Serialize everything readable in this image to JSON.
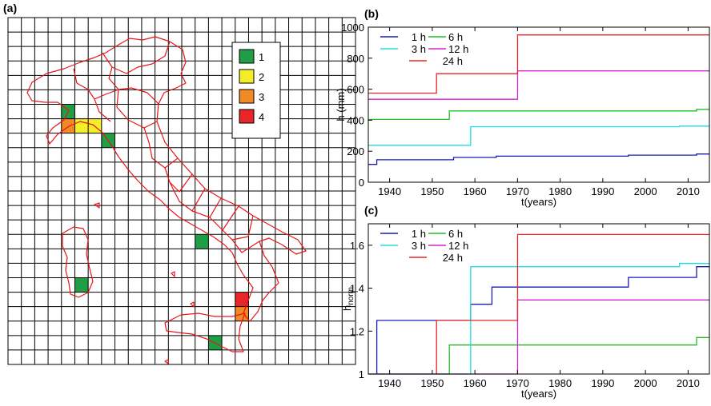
{
  "panels": {
    "a": "(a)",
    "b": "(b)",
    "c": "(c)"
  },
  "map": {
    "legend": [
      {
        "label": "1",
        "color": "#1f9e46"
      },
      {
        "label": "2",
        "color": "#f4ee2a"
      },
      {
        "label": "3",
        "color": "#f08a24"
      },
      {
        "label": "4",
        "color": "#e8262a"
      }
    ],
    "grid_cols": 26,
    "grid_rows": 24,
    "outline_color": "#e8141a",
    "cells": [
      {
        "col": 4,
        "row": 6,
        "class": 1
      },
      {
        "col": 5,
        "row": 7,
        "class": 2
      },
      {
        "col": 6,
        "row": 7,
        "class": 2
      },
      {
        "col": 4,
        "row": 7,
        "class": 3
      },
      {
        "col": 7,
        "row": 8,
        "class": 1
      },
      {
        "col": 14,
        "row": 15,
        "class": 1
      },
      {
        "col": 5,
        "row": 18,
        "class": 1
      },
      {
        "col": 17,
        "row": 19,
        "class": 4
      },
      {
        "col": 17,
        "row": 20,
        "class": 3
      },
      {
        "col": 15,
        "row": 22,
        "class": 1
      }
    ]
  },
  "chart_data": [
    {
      "panel": "b",
      "type": "line",
      "xlabel": "t(years)",
      "ylabel": "h (mm)",
      "xlim": [
        1935,
        2015
      ],
      "ylim": [
        0,
        1000
      ],
      "xticks": [
        "1940",
        "1950",
        "1960",
        "1970",
        "1980",
        "1990",
        "2000",
        "2010"
      ],
      "yticks": [
        "0",
        "200",
        "400",
        "600",
        "800",
        "1000"
      ],
      "legend_position": "top-left",
      "series": [
        {
          "name": "1 h",
          "color": "#1a1ab8",
          "x": [
            1935,
            1937,
            1937,
            1955,
            1955,
            1965,
            1965,
            1996,
            1996,
            2012,
            2012,
            2015
          ],
          "y": [
            115,
            115,
            145,
            145,
            160,
            160,
            168,
            168,
            175,
            175,
            182,
            182
          ]
        },
        {
          "name": "6 h",
          "color": "#22c022",
          "x": [
            1935,
            1954,
            1954,
            2012,
            2012,
            2015
          ],
          "y": [
            405,
            405,
            460,
            460,
            470,
            470
          ]
        },
        {
          "name": "3 h",
          "color": "#22dede",
          "x": [
            1935,
            1959,
            1959,
            2008,
            2008,
            2015
          ],
          "y": [
            238,
            238,
            358,
            358,
            362,
            362
          ]
        },
        {
          "name": "12 h",
          "color": "#d622d6",
          "x": [
            1935,
            1970,
            1970,
            2015
          ],
          "y": [
            535,
            535,
            718,
            718
          ]
        },
        {
          "name": "24 h",
          "color": "#e8262a",
          "x": [
            1935,
            1951,
            1951,
            1970,
            1970,
            2015
          ],
          "y": [
            575,
            575,
            700,
            700,
            950,
            950
          ]
        }
      ]
    },
    {
      "panel": "c",
      "type": "line",
      "xlabel": "t(years)",
      "ylabel": "h",
      "ylabel_sub": "norm",
      "xlim": [
        1935,
        2015
      ],
      "ylim": [
        1,
        1.7
      ],
      "xticks": [
        "1940",
        "1950",
        "1960",
        "1970",
        "1980",
        "1990",
        "2000",
        "2010"
      ],
      "yticks": [
        "1",
        "1.2",
        "1.4",
        "1.6"
      ],
      "legend_position": "top-left",
      "series": [
        {
          "name": "1 h",
          "color": "#1a1ab8",
          "x": [
            1937,
            1937,
            1959,
            1959,
            1964,
            1964,
            1996,
            1996,
            2012,
            2012,
            2015
          ],
          "y": [
            1.0,
            1.25,
            1.25,
            1.325,
            1.325,
            1.405,
            1.405,
            1.45,
            1.45,
            1.5,
            1.5
          ]
        },
        {
          "name": "6 h",
          "color": "#22c022",
          "x": [
            1935,
            1954,
            1954,
            2012,
            2012,
            2015
          ],
          "y": [
            1.0,
            1.0,
            1.135,
            1.135,
            1.17,
            1.17
          ]
        },
        {
          "name": "3 h",
          "color": "#22dede",
          "x": [
            1935,
            1959,
            1959,
            2008,
            2008,
            2015
          ],
          "y": [
            1.0,
            1.0,
            1.5,
            1.5,
            1.515,
            1.515
          ]
        },
        {
          "name": "12 h",
          "color": "#d622d6",
          "x": [
            1935,
            1970,
            1970,
            2015
          ],
          "y": [
            1.0,
            1.0,
            1.345,
            1.345
          ]
        },
        {
          "name": "24 h",
          "color": "#e8262a",
          "x": [
            1951,
            1951,
            1970,
            1970,
            2015
          ],
          "y": [
            1.0,
            1.25,
            1.25,
            1.65,
            1.65
          ]
        }
      ]
    }
  ]
}
